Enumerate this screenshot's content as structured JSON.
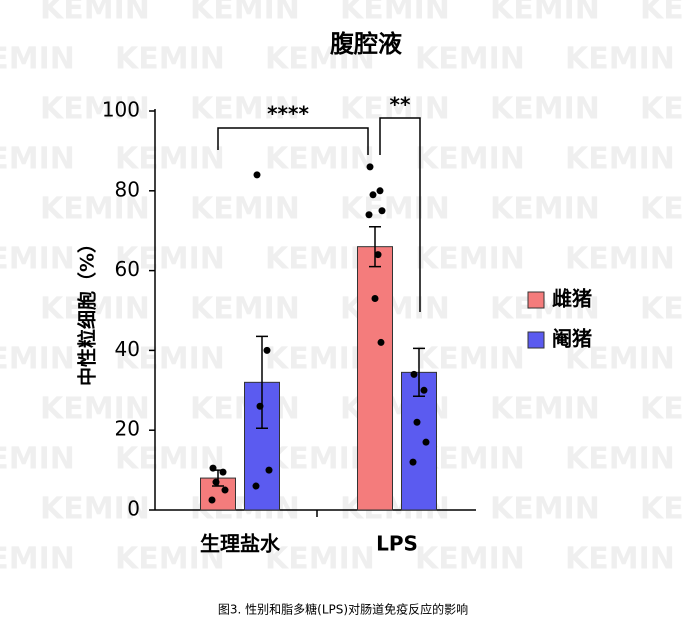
{
  "chart_data": {
    "type": "bar",
    "title": "腹腔液",
    "y_label": "中性粒细胞（%）",
    "categories": [
      "生理盐水",
      "LPS"
    ],
    "series": [
      {
        "name": "雌猪",
        "color": "#f47c7c",
        "values": [
          8,
          66
        ],
        "errors": [
          2,
          5
        ],
        "points": [
          [
            10.5,
            9.5,
            7,
            5,
            2.5
          ],
          [
            86,
            80,
            79,
            75,
            74,
            64,
            53,
            42
          ]
        ]
      },
      {
        "name": "阉猪",
        "color": "#5b5bf0",
        "values": [
          32,
          34.5
        ],
        "errors": [
          11.5,
          6
        ],
        "points": [
          [
            84,
            40,
            26,
            10,
            6
          ],
          [
            34,
            30,
            22,
            17,
            12
          ]
        ]
      }
    ],
    "ylim": [
      0,
      100
    ],
    "yticks": [
      0,
      20,
      40,
      60,
      80,
      100
    ],
    "annotations": [
      "****",
      "**"
    ],
    "caption": "图3. 性别和脂多糖(LPS)对肠道免疫反应的影响",
    "watermark": "KEMIN"
  }
}
